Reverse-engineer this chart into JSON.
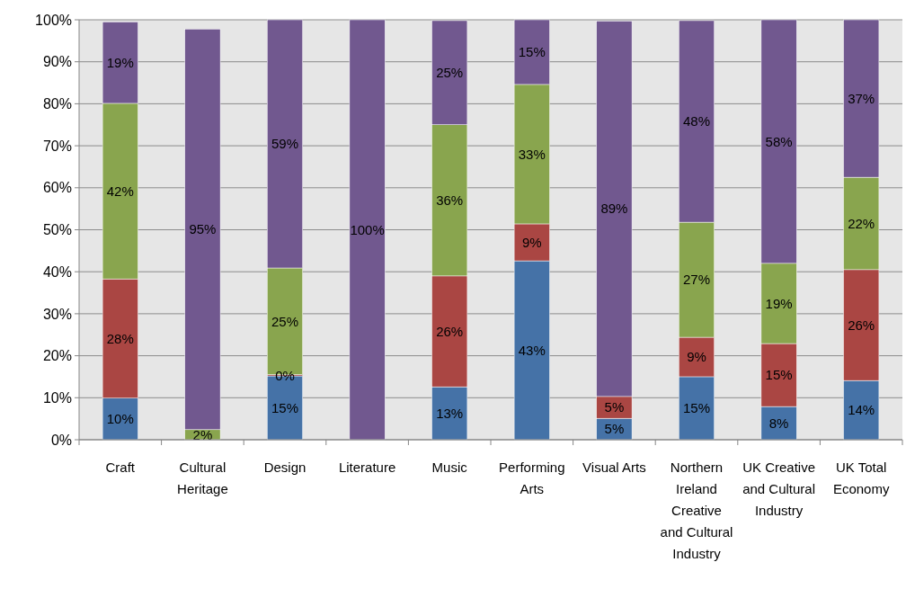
{
  "chart_data": {
    "type": "bar",
    "stacked": true,
    "grid": "y",
    "categories": [
      "Craft",
      "Cultural Heritage",
      "Design",
      "Literature",
      "Music",
      "Performing Arts",
      "Visual Arts",
      "Northern Ireland Creative and Cultural Industry",
      "UK Creative and Cultural Industry",
      "UK Total Economy"
    ],
    "ylim": [
      0,
      100
    ],
    "yticks": [
      {
        "value": 0,
        "label": "0%"
      },
      {
        "value": 10,
        "label": "10%"
      },
      {
        "value": 20,
        "label": "20%"
      },
      {
        "value": 30,
        "label": "30%"
      },
      {
        "value": 40,
        "label": "40%"
      },
      {
        "value": 50,
        "label": "50%"
      },
      {
        "value": 60,
        "label": "60%"
      },
      {
        "value": 70,
        "label": "70%"
      },
      {
        "value": 80,
        "label": "80%"
      },
      {
        "value": 90,
        "label": "90%"
      },
      {
        "value": 100,
        "label": "100%"
      }
    ],
    "series": [
      {
        "color": "#4572a7",
        "values": [
          9.9,
          0,
          15.2,
          0,
          12.6,
          42.6,
          5.1,
          15.0,
          7.9,
          14.1
        ],
        "value_labels": [
          "10%",
          null,
          "15%",
          null,
          "13%",
          "43%",
          "5%",
          "15%",
          "8%",
          "14%"
        ]
      },
      {
        "color": "#aa4643",
        "values": [
          28.4,
          0,
          0.3,
          0,
          26.4,
          8.8,
          5.2,
          9.4,
          15.0,
          26.4
        ],
        "value_labels": [
          "28%",
          null,
          "0%",
          null,
          "26%",
          "9%",
          "5%",
          "9%",
          "15%",
          "26%"
        ]
      },
      {
        "color": "#89a54e",
        "values": [
          41.8,
          2.4,
          25.4,
          0,
          36.0,
          33.2,
          0,
          27.4,
          19.1,
          22.0
        ],
        "value_labels": [
          "42%",
          "2%",
          "25%",
          null,
          "36%",
          "33%",
          null,
          "27%",
          "19%",
          "22%"
        ]
      },
      {
        "color": "#71588f",
        "values": [
          19.4,
          95.4,
          59.1,
          100,
          24.8,
          15.4,
          89.4,
          48.0,
          58.0,
          37.5
        ],
        "value_labels": [
          "19%",
          "95%",
          "59%",
          "100%",
          "25%",
          "15%",
          "89%",
          "48%",
          "58%",
          "37%"
        ]
      }
    ]
  }
}
